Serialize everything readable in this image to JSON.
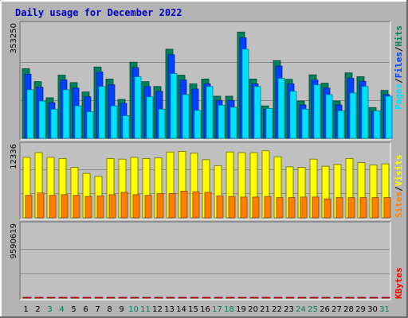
{
  "title": "Daily usage for December 2022",
  "colors": {
    "frame": "#b4b4b4",
    "plot_bg": "#c0c0c0",
    "title": "#0000c0",
    "hits": "#00805c",
    "files": "#0040ff",
    "pages": "#00e0ff",
    "visits": "#ffff00",
    "sites": "#ff8000",
    "kbytes": "#ff0000",
    "weekend_day": "#00805c",
    "weekday": "#000000"
  },
  "chart_data": [
    {
      "type": "bar",
      "panel": "requests",
      "ymax_label": "353250",
      "ylim": [
        0,
        353250
      ],
      "legend": [
        "Pages",
        "/",
        "Files",
        "/",
        "Hits"
      ],
      "categories": [
        "1",
        "2",
        "3",
        "4",
        "5",
        "6",
        "7",
        "8",
        "9",
        "10",
        "11",
        "12",
        "13",
        "14",
        "15",
        "16",
        "17",
        "18",
        "19",
        "20",
        "21",
        "22",
        "23",
        "24",
        "25",
        "26",
        "27",
        "28",
        "29",
        "30",
        "31"
      ],
      "series": [
        {
          "name": "Hits",
          "values": [
            215000,
            175000,
            125000,
            195000,
            172000,
            143000,
            220000,
            183000,
            120000,
            235000,
            175000,
            160000,
            275000,
            195000,
            168000,
            183000,
            130000,
            130000,
            328000,
            183000,
            100000,
            240000,
            182000,
            115000,
            196000,
            170000,
            115000,
            202000,
            190000,
            95000,
            148000
          ]
        },
        {
          "name": "Files",
          "values": [
            198000,
            158000,
            110000,
            180000,
            155000,
            128000,
            205000,
            165000,
            108000,
            218000,
            160000,
            145000,
            258000,
            180000,
            152000,
            168000,
            117000,
            117000,
            310000,
            168000,
            90000,
            223000,
            168000,
            103000,
            180000,
            155000,
            103000,
            185000,
            176000,
            83000,
            135000
          ]
        },
        {
          "name": "Pages",
          "values": [
            150000,
            115000,
            90000,
            150000,
            100000,
            82000,
            160000,
            100000,
            70000,
            190000,
            128000,
            90000,
            200000,
            135000,
            86000,
            160000,
            102000,
            96000,
            275000,
            160000,
            92000,
            185000,
            145000,
            90000,
            165000,
            135000,
            85000,
            140000,
            160000,
            85000,
            130000
          ]
        }
      ]
    },
    {
      "type": "bar",
      "panel": "visitors",
      "ymax_label": "12336",
      "ylim": [
        0,
        12336
      ],
      "legend": [
        "Sites",
        "/",
        "Visits"
      ],
      "categories": [
        "1",
        "2",
        "3",
        "4",
        "5",
        "6",
        "7",
        "8",
        "9",
        "10",
        "11",
        "12",
        "13",
        "14",
        "15",
        "16",
        "17",
        "18",
        "19",
        "20",
        "21",
        "22",
        "23",
        "24",
        "25",
        "26",
        "27",
        "28",
        "29",
        "30",
        "31"
      ],
      "series": [
        {
          "name": "Visits",
          "values": [
            10200,
            11000,
            10200,
            10000,
            8500,
            7500,
            7000,
            10000,
            9900,
            10200,
            10000,
            10100,
            11100,
            11200,
            10900,
            9800,
            8800,
            11100,
            11000,
            11000,
            11300,
            10300,
            8600,
            8500,
            9900,
            8700,
            9000,
            10000,
            9300,
            8900,
            9100
          ]
        },
        {
          "name": "Sites",
          "values": [
            3800,
            4200,
            3800,
            3900,
            3800,
            3600,
            3700,
            3900,
            4300,
            3900,
            3800,
            4100,
            4100,
            4500,
            4400,
            4300,
            3700,
            3600,
            3500,
            3500,
            3600,
            3400,
            3400,
            3500,
            3500,
            3200,
            3400,
            3400,
            3400,
            3400,
            3400
          ]
        }
      ]
    },
    {
      "type": "bar",
      "panel": "kbytes",
      "ymax_label": "9590619",
      "ylim": [
        0,
        9590619
      ],
      "legend": [
        "KBytes"
      ],
      "categories": [
        "1",
        "2",
        "3",
        "4",
        "5",
        "6",
        "7",
        "8",
        "9",
        "10",
        "11",
        "12",
        "13",
        "14",
        "15",
        "16",
        "17",
        "18",
        "19",
        "20",
        "21",
        "22",
        "23",
        "24",
        "25",
        "26",
        "27",
        "28",
        "29",
        "30",
        "31"
      ],
      "series": [
        {
          "name": "KBytes",
          "values": [
            6500,
            6500,
            4600,
            6100,
            7300,
            5600,
            6100,
            6500,
            5500,
            6200,
            6500,
            6500,
            8000,
            7200,
            6500,
            6600,
            4800,
            5100,
            14300,
            7500,
            5600,
            7100,
            6100,
            4500,
            5300,
            5300,
            5600,
            6300,
            6700,
            5800,
            5100
          ]
        }
      ]
    }
  ],
  "x_axis": {
    "labels": [
      "1",
      "2",
      "3",
      "4",
      "5",
      "6",
      "7",
      "8",
      "9",
      "10",
      "11",
      "12",
      "13",
      "14",
      "15",
      "16",
      "17",
      "18",
      "19",
      "20",
      "21",
      "22",
      "23",
      "24",
      "25",
      "26",
      "27",
      "28",
      "29",
      "30",
      "31"
    ],
    "weekend_days": [
      3,
      4,
      10,
      11,
      17,
      18,
      24,
      25,
      31
    ]
  }
}
